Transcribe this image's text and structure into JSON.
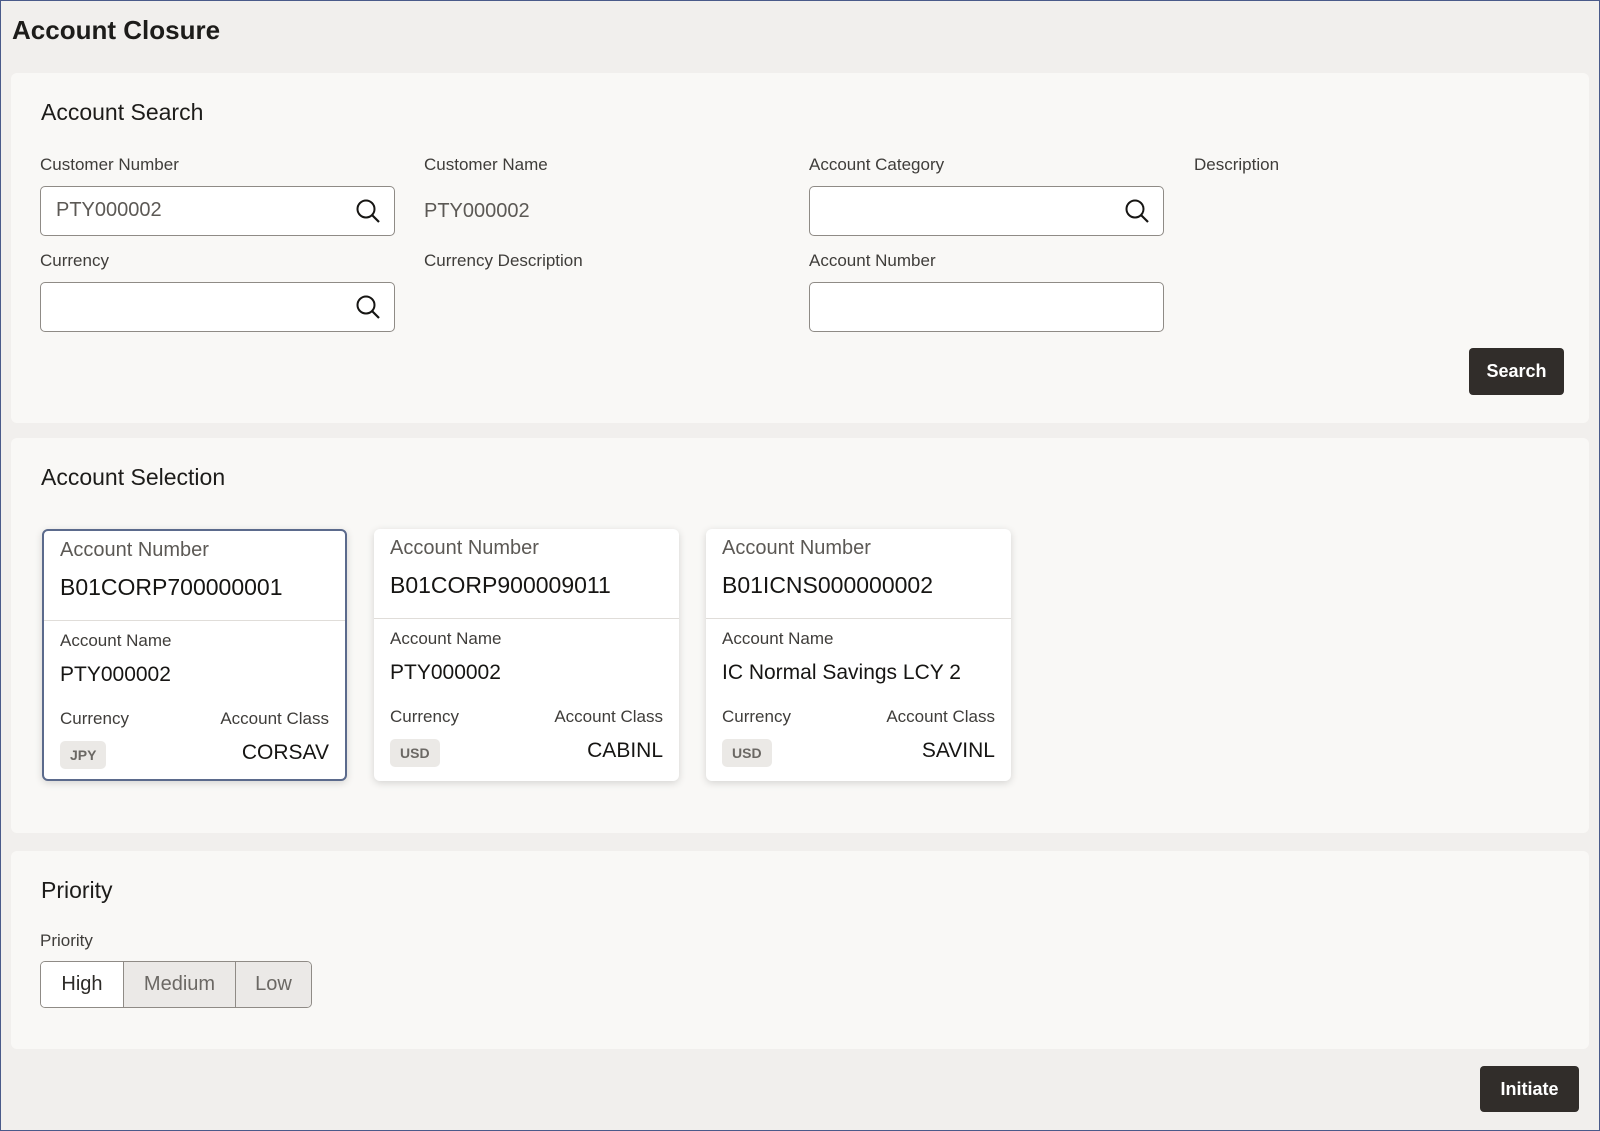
{
  "page": {
    "title": "Account Closure"
  },
  "search": {
    "heading": "Account Search",
    "customer_number": {
      "label": "Customer Number",
      "value": "PTY000002"
    },
    "customer_name": {
      "label": "Customer Name",
      "value": "PTY000002"
    },
    "account_category": {
      "label": "Account Category",
      "value": ""
    },
    "description": {
      "label": "Description"
    },
    "currency": {
      "label": "Currency",
      "value": ""
    },
    "currency_description": {
      "label": "Currency Description"
    },
    "account_number": {
      "label": "Account Number",
      "value": ""
    },
    "search_label": "Search"
  },
  "selection": {
    "heading": "Account Selection",
    "cards": [
      {
        "number_label": "Account Number",
        "number": "B01CORP700000001",
        "name_label": "Account Name",
        "name": "PTY000002",
        "currency_label": "Currency",
        "currency": "JPY",
        "class_label": "Account Class",
        "class": "CORSAV",
        "selected": true
      },
      {
        "number_label": "Account Number",
        "number": "B01CORP900009011",
        "name_label": "Account Name",
        "name": "PTY000002",
        "currency_label": "Currency",
        "currency": "USD",
        "class_label": "Account Class",
        "class": "CABINL",
        "selected": false
      },
      {
        "number_label": "Account Number",
        "number": "B01ICNS000000002",
        "name_label": "Account Name",
        "name": "IC Normal Savings LCY 2",
        "currency_label": "Currency",
        "currency": "USD",
        "class_label": "Account Class",
        "class": "SAVINL",
        "selected": false
      }
    ]
  },
  "priority": {
    "heading": "Priority",
    "label": "Priority",
    "options": [
      "High",
      "Medium",
      "Low"
    ],
    "selected": "High"
  },
  "footer": {
    "initiate_label": "Initiate"
  }
}
